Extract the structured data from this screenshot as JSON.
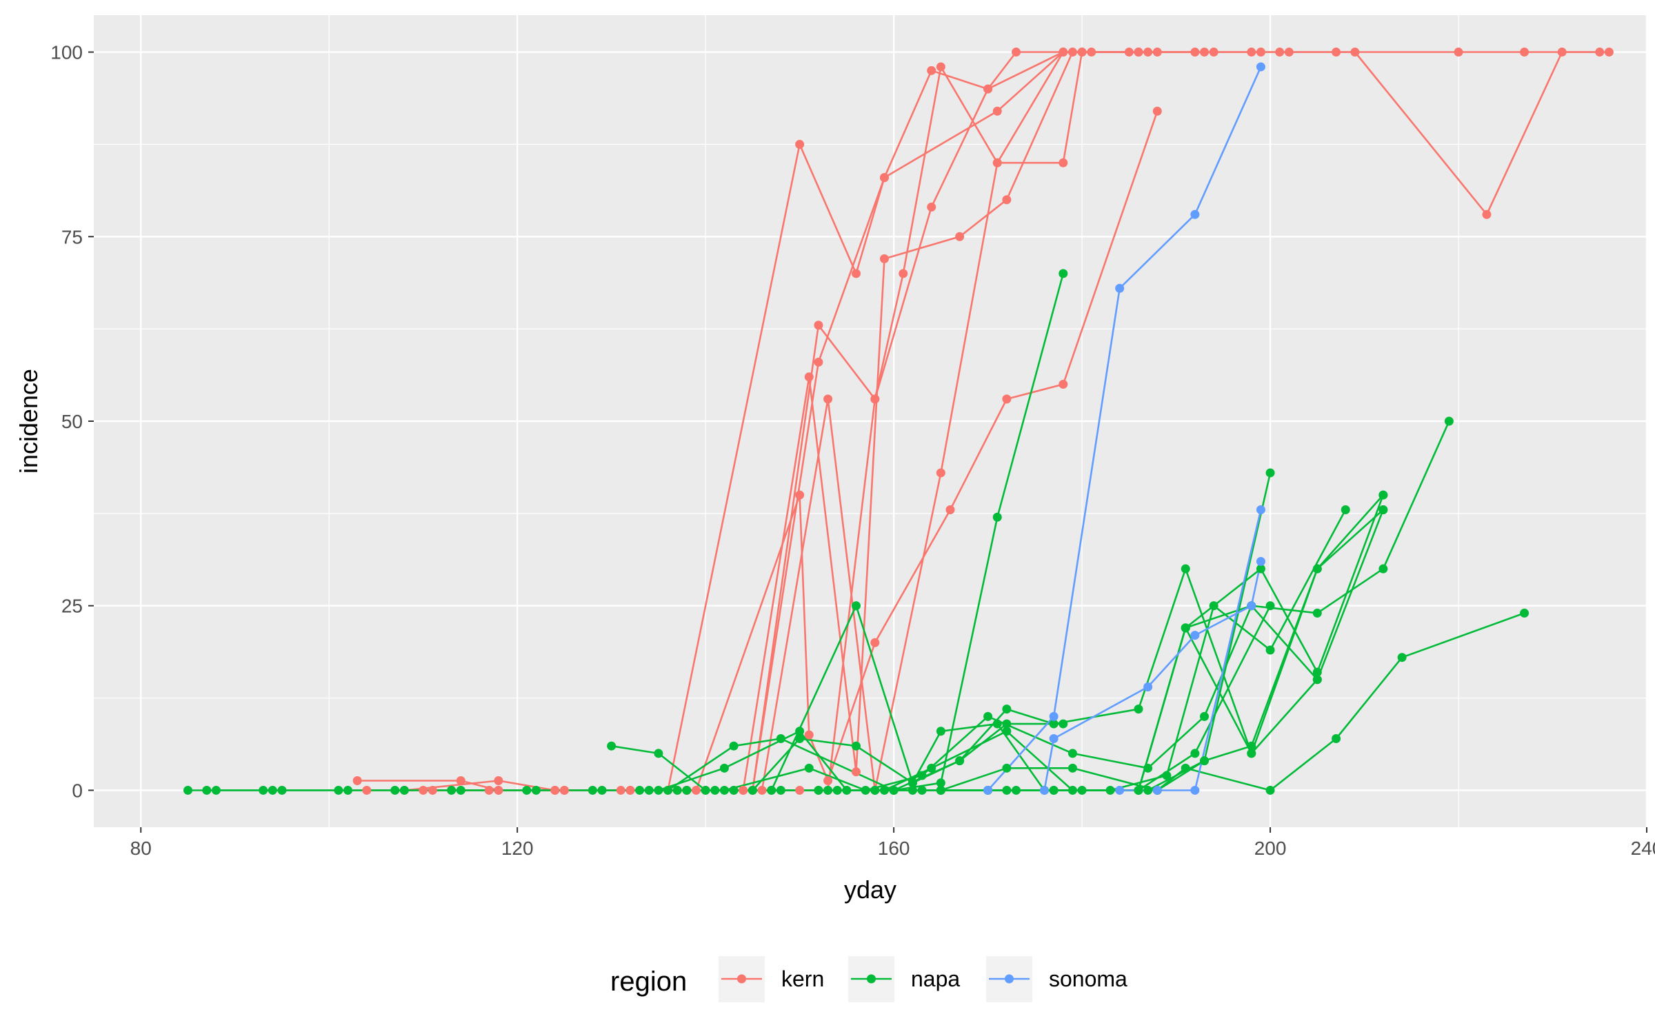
{
  "chart_data": {
    "type": "line",
    "xlabel": "yday",
    "ylabel": "incidence",
    "xlim": [
      75,
      240
    ],
    "ylim": [
      -5,
      105
    ],
    "xticks": [
      80,
      120,
      160,
      200,
      240
    ],
    "yticks": [
      0,
      25,
      50,
      75,
      100
    ],
    "grid": true,
    "legend": {
      "title": "region",
      "position": "bottom"
    },
    "groups": [
      {
        "name": "kern",
        "color": "#F8766D"
      },
      {
        "name": "napa",
        "color": "#00BA38"
      },
      {
        "name": "sonoma",
        "color": "#619CFF"
      }
    ],
    "series": [
      {
        "region": "kern",
        "points": [
          [
            103,
            1.3
          ],
          [
            114,
            1.3
          ],
          [
            118,
            0
          ],
          [
            125,
            0
          ],
          [
            136,
            0
          ],
          [
            150,
            87.5
          ],
          [
            156,
            70
          ],
          [
            159,
            83
          ],
          [
            164,
            97.5
          ],
          [
            170,
            95
          ],
          [
            173,
            100
          ],
          [
            180,
            100
          ],
          [
            186,
            100
          ],
          [
            193,
            100
          ],
          [
            198,
            100
          ],
          [
            202,
            100
          ],
          [
            209,
            100
          ],
          [
            223,
            78
          ],
          [
            231,
            100
          ],
          [
            236,
            100
          ]
        ]
      },
      {
        "region": "kern",
        "points": [
          [
            108,
            0
          ],
          [
            118,
            1.3
          ],
          [
            124,
            0
          ],
          [
            132,
            0
          ],
          [
            138,
            0
          ],
          [
            145,
            0
          ],
          [
            152,
            63
          ],
          [
            158,
            53
          ],
          [
            161,
            70
          ],
          [
            165,
            98
          ],
          [
            171,
            85
          ],
          [
            178,
            85
          ],
          [
            180,
            100
          ],
          [
            187,
            100
          ]
        ]
      },
      {
        "region": "kern",
        "points": [
          [
            110,
            0
          ],
          [
            118,
            0
          ],
          [
            125,
            0
          ],
          [
            131,
            0
          ],
          [
            137,
            0
          ],
          [
            144,
            0
          ],
          [
            151,
            56
          ],
          [
            156,
            2.5
          ],
          [
            159,
            72
          ],
          [
            167,
            75
          ],
          [
            172,
            80
          ],
          [
            179,
            100
          ],
          [
            185,
            100
          ],
          [
            192,
            100
          ]
        ]
      },
      {
        "region": "kern",
        "points": [
          [
            104,
            0
          ],
          [
            111,
            0
          ],
          [
            117,
            0
          ],
          [
            124,
            0
          ],
          [
            132,
            0
          ],
          [
            138,
            0
          ],
          [
            145,
            0
          ],
          [
            152,
            58
          ],
          [
            159,
            83
          ],
          [
            171,
            92
          ],
          [
            178,
            100
          ],
          [
            186,
            100
          ],
          [
            194,
            100
          ]
        ]
      },
      {
        "region": "kern",
        "points": [
          [
            139,
            0
          ],
          [
            150,
            40
          ],
          [
            151,
            7.5
          ],
          [
            153,
            1.3
          ],
          [
            158,
            20
          ],
          [
            166,
            38
          ],
          [
            172,
            53
          ],
          [
            178,
            55
          ],
          [
            188,
            92
          ]
        ]
      },
      {
        "region": "kern",
        "points": [
          [
            138,
            0
          ],
          [
            143,
            0
          ],
          [
            146,
            0
          ],
          [
            153,
            53
          ],
          [
            158,
            0
          ],
          [
            165,
            43
          ],
          [
            171,
            85
          ],
          [
            178,
            100
          ],
          [
            181,
            100
          ],
          [
            188,
            100
          ]
        ]
      },
      {
        "region": "kern",
        "points": [
          [
            140,
            0
          ],
          [
            144,
            0
          ],
          [
            150,
            0
          ],
          [
            153,
            0
          ],
          [
            158,
            53
          ],
          [
            164,
            79
          ],
          [
            170,
            95
          ],
          [
            178,
            100
          ],
          [
            186,
            100
          ],
          [
            199,
            100
          ],
          [
            201,
            100
          ],
          [
            207,
            100
          ],
          [
            220,
            100
          ],
          [
            227,
            100
          ],
          [
            235,
            100
          ]
        ]
      },
      {
        "region": "napa",
        "points": [
          [
            85,
            0
          ],
          [
            87,
            0
          ],
          [
            93,
            0
          ],
          [
            95,
            0
          ],
          [
            101,
            0
          ],
          [
            107,
            0
          ],
          [
            113,
            0
          ],
          [
            121,
            0
          ],
          [
            128,
            0
          ],
          [
            134,
            0
          ],
          [
            141,
            0
          ],
          [
            147,
            0
          ],
          [
            156,
            25
          ],
          [
            162,
            1
          ],
          [
            167,
            4
          ],
          [
            172,
            9
          ],
          [
            178,
            9
          ]
        ]
      },
      {
        "region": "napa",
        "points": [
          [
            88,
            0
          ],
          [
            94,
            0
          ],
          [
            102,
            0
          ],
          [
            108,
            0
          ],
          [
            114,
            0
          ],
          [
            122,
            0
          ],
          [
            129,
            0
          ],
          [
            135,
            0
          ],
          [
            142,
            3
          ],
          [
            150,
            8
          ],
          [
            155,
            0
          ],
          [
            160,
            0
          ],
          [
            167,
            4
          ],
          [
            172,
            11
          ],
          [
            177,
            9
          ],
          [
            186,
            11
          ],
          [
            191,
            30
          ],
          [
            198,
            5
          ],
          [
            205,
            30
          ],
          [
            212,
            38
          ]
        ]
      },
      {
        "region": "napa",
        "points": [
          [
            130,
            6
          ],
          [
            135,
            5
          ],
          [
            140,
            0
          ],
          [
            145,
            0
          ],
          [
            150,
            7
          ],
          [
            156,
            6
          ],
          [
            162,
            1
          ],
          [
            165,
            8
          ],
          [
            171,
            9
          ],
          [
            176,
            0
          ],
          [
            186,
            0
          ],
          [
            192,
            5
          ],
          [
            200,
            25
          ]
        ]
      },
      {
        "region": "napa",
        "points": [
          [
            133,
            0
          ],
          [
            137,
            0
          ],
          [
            142,
            0
          ],
          [
            151,
            3
          ],
          [
            157,
            0
          ],
          [
            163,
            2
          ],
          [
            170,
            10
          ],
          [
            179,
            5
          ],
          [
            187,
            3
          ],
          [
            193,
            10
          ],
          [
            198,
            25
          ],
          [
            205,
            15
          ]
        ]
      },
      {
        "region": "napa",
        "points": [
          [
            136,
            0
          ],
          [
            143,
            6
          ],
          [
            148,
            7
          ],
          [
            160,
            0
          ],
          [
            165,
            1
          ],
          [
            171,
            37
          ],
          [
            178,
            70
          ]
        ]
      },
      {
        "region": "napa",
        "points": [
          [
            138,
            0
          ],
          [
            143,
            0
          ],
          [
            148,
            0
          ],
          [
            154,
            0
          ],
          [
            159,
            0
          ],
          [
            164,
            3
          ],
          [
            172,
            8
          ],
          [
            179,
            0
          ],
          [
            187,
            0
          ],
          [
            193,
            4
          ],
          [
            200,
            43
          ]
        ]
      },
      {
        "region": "napa",
        "points": [
          [
            145,
            0
          ],
          [
            152,
            0
          ],
          [
            158,
            0
          ],
          [
            165,
            0
          ],
          [
            172,
            3
          ],
          [
            179,
            3
          ],
          [
            188,
            0
          ],
          [
            193,
            4
          ],
          [
            198,
            6
          ],
          [
            205,
            30
          ],
          [
            212,
            40
          ]
        ]
      },
      {
        "region": "napa",
        "points": [
          [
            147,
            0
          ],
          [
            153,
            0
          ],
          [
            160,
            0
          ],
          [
            165,
            0
          ],
          [
            173,
            0
          ],
          [
            186,
            0
          ],
          [
            191,
            22
          ],
          [
            198,
            25
          ],
          [
            205,
            24
          ],
          [
            212,
            30
          ],
          [
            219,
            50
          ]
        ]
      },
      {
        "region": "napa",
        "points": [
          [
            152,
            0
          ],
          [
            158,
            0
          ],
          [
            163,
            0
          ],
          [
            170,
            0
          ],
          [
            177,
            0
          ],
          [
            183,
            0
          ],
          [
            189,
            2
          ],
          [
            194,
            25
          ],
          [
            200,
            19
          ],
          [
            208,
            38
          ]
        ]
      },
      {
        "region": "napa",
        "points": [
          [
            162,
            0
          ],
          [
            170,
            0
          ],
          [
            177,
            0
          ],
          [
            186,
            0
          ],
          [
            191,
            22
          ],
          [
            199,
            30
          ],
          [
            205,
            16
          ],
          [
            212,
            40
          ]
        ]
      },
      {
        "region": "napa",
        "points": [
          [
            165,
            0
          ],
          [
            172,
            0
          ],
          [
            180,
            0
          ],
          [
            188,
            0
          ],
          [
            191,
            3
          ],
          [
            200,
            0
          ],
          [
            207,
            7
          ],
          [
            214,
            18
          ],
          [
            227,
            24
          ]
        ]
      },
      {
        "region": "napa",
        "points": [
          [
            165,
            0
          ],
          [
            170,
            0
          ],
          [
            186,
            0
          ],
          [
            191,
            22
          ],
          [
            198,
            5
          ],
          [
            205,
            15
          ],
          [
            212,
            38
          ]
        ]
      },
      {
        "region": "sonoma",
        "points": [
          [
            170,
            0
          ],
          [
            177,
            10
          ],
          [
            184,
            68
          ],
          [
            192,
            78
          ],
          [
            199,
            98
          ]
        ]
      },
      {
        "region": "sonoma",
        "points": [
          [
            176,
            0
          ],
          [
            177,
            7
          ],
          [
            187,
            14
          ],
          [
            192,
            21
          ],
          [
            198,
            25
          ],
          [
            199,
            31
          ]
        ]
      },
      {
        "region": "sonoma",
        "points": [
          [
            184,
            0
          ],
          [
            188,
            0
          ],
          [
            192,
            0
          ],
          [
            199,
            38
          ]
        ]
      }
    ]
  }
}
